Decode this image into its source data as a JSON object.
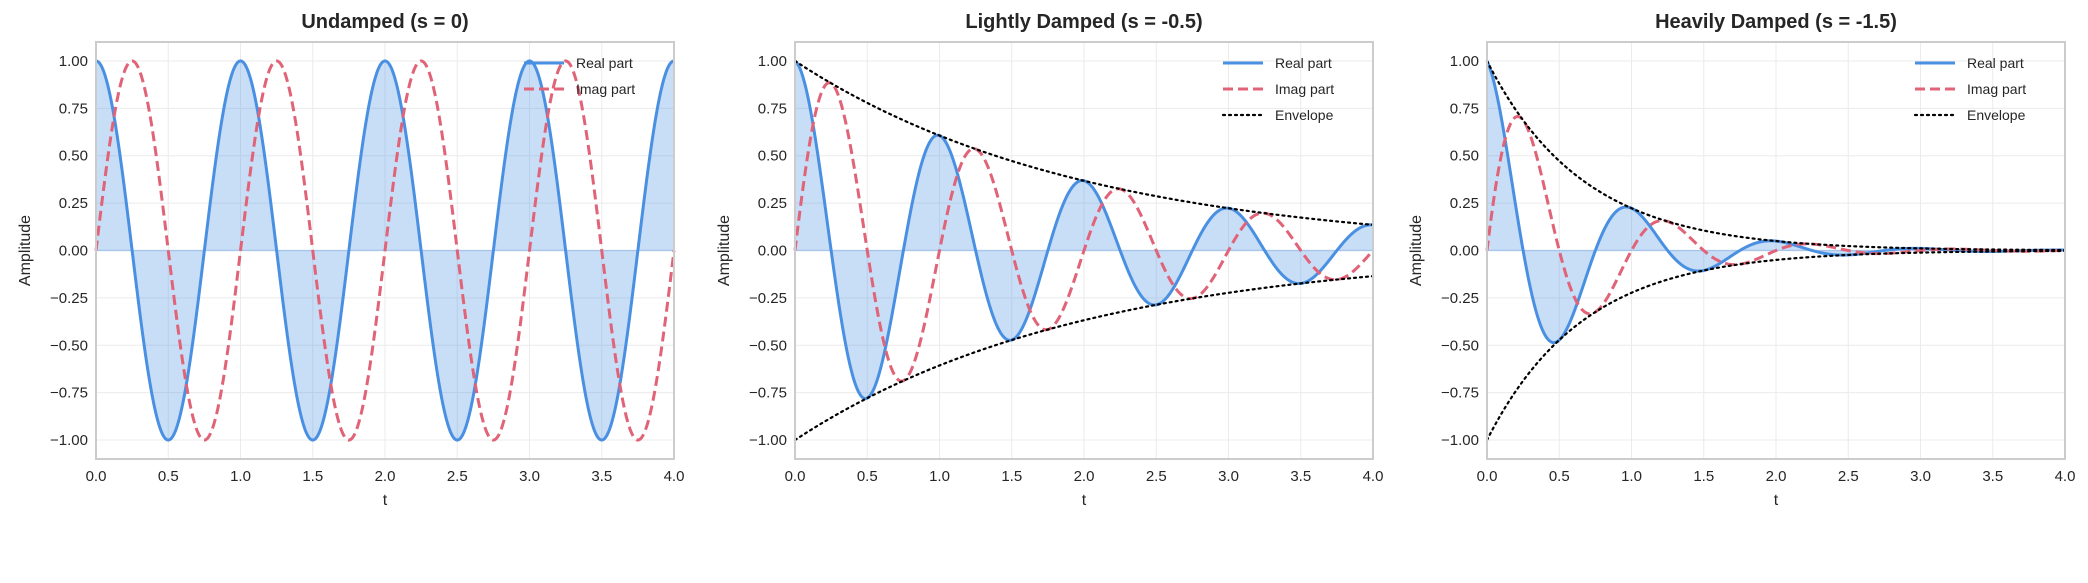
{
  "chart_data": [
    {
      "type": "line",
      "title": "Undamped (s = 0)",
      "xlabel": "t",
      "ylabel": "Amplitude",
      "s": 0,
      "frequency_hz": 1,
      "xlim": [
        0,
        4
      ],
      "ylim": [
        -1.1,
        1.1
      ],
      "xticks": [
        "0.0",
        "0.5",
        "1.0",
        "1.5",
        "2.0",
        "2.5",
        "3.0",
        "3.5",
        "4.0"
      ],
      "yticks": [
        "−1.00",
        "−0.75",
        "−0.50",
        "−0.25",
        "0.00",
        "0.25",
        "0.50",
        "0.75",
        "1.00"
      ],
      "grid": true,
      "legend_position": "top-right",
      "series": [
        {
          "name": "Real part",
          "expr": "exp(s*t)*cos(2*pi*t)",
          "color": "#4a90e2",
          "style": "solid",
          "fill_to_zero": true
        },
        {
          "name": "Imag part",
          "expr": "exp(s*t)*sin(2*pi*t)",
          "color": "#e06377",
          "style": "dashed"
        }
      ]
    },
    {
      "type": "line",
      "title": "Lightly Damped (s = -0.5)",
      "xlabel": "t",
      "ylabel": "Amplitude",
      "s": -0.5,
      "frequency_hz": 1,
      "xlim": [
        0,
        4
      ],
      "ylim": [
        -1.1,
        1.1
      ],
      "xticks": [
        "0.0",
        "0.5",
        "1.0",
        "1.5",
        "2.0",
        "2.5",
        "3.0",
        "3.5",
        "4.0"
      ],
      "yticks": [
        "−1.00",
        "−0.75",
        "−0.50",
        "−0.25",
        "0.00",
        "0.25",
        "0.50",
        "0.75",
        "1.00"
      ],
      "grid": true,
      "legend_position": "top-right",
      "series": [
        {
          "name": "Real part",
          "expr": "exp(s*t)*cos(2*pi*t)",
          "color": "#4a90e2",
          "style": "solid",
          "fill_to_zero": true
        },
        {
          "name": "Imag part",
          "expr": "exp(s*t)*sin(2*pi*t)",
          "color": "#e06377",
          "style": "dashed"
        },
        {
          "name": "Envelope",
          "expr": "±exp(s*t)",
          "color": "#000000",
          "style": "dotted"
        }
      ]
    },
    {
      "type": "line",
      "title": "Heavily Damped (s = -1.5)",
      "xlabel": "t",
      "ylabel": "Amplitude",
      "s": -1.5,
      "frequency_hz": 1,
      "xlim": [
        0,
        4
      ],
      "ylim": [
        -1.1,
        1.1
      ],
      "xticks": [
        "0.0",
        "0.5",
        "1.0",
        "1.5",
        "2.0",
        "2.5",
        "3.0",
        "3.5",
        "4.0"
      ],
      "yticks": [
        "−1.00",
        "−0.75",
        "−0.50",
        "−0.25",
        "0.00",
        "0.25",
        "0.50",
        "0.75",
        "1.00"
      ],
      "grid": true,
      "legend_position": "top-right",
      "series": [
        {
          "name": "Real part",
          "expr": "exp(s*t)*cos(2*pi*t)",
          "color": "#4a90e2",
          "style": "solid",
          "fill_to_zero": true
        },
        {
          "name": "Imag part",
          "expr": "exp(s*t)*sin(2*pi*t)",
          "color": "#e06377",
          "style": "dashed"
        },
        {
          "name": "Envelope",
          "expr": "±exp(s*t)",
          "color": "#000000",
          "style": "dotted"
        }
      ]
    }
  ]
}
